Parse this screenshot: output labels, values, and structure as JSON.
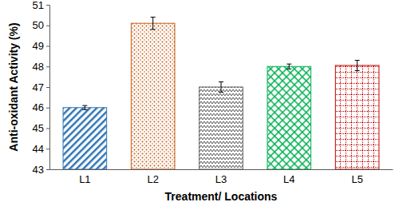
{
  "chart_data": {
    "type": "bar",
    "x_label": "Treatment/ Locations",
    "y_label": "Anti-oxidant Activity (%)",
    "categories": [
      "L1",
      "L2",
      "L3",
      "L4",
      "L5"
    ],
    "values": [
      46.0,
      50.1,
      47.0,
      48.0,
      48.05
    ],
    "errors": [
      0.1,
      0.3,
      0.25,
      0.12,
      0.25
    ],
    "colors": [
      "#2e75b6",
      "#c55a11",
      "#595959",
      "#00b050",
      "#c00000"
    ],
    "ylim": [
      43,
      51
    ],
    "yticks": [
      43,
      44,
      45,
      46,
      47,
      48,
      49,
      50,
      51
    ],
    "grid": false
  }
}
